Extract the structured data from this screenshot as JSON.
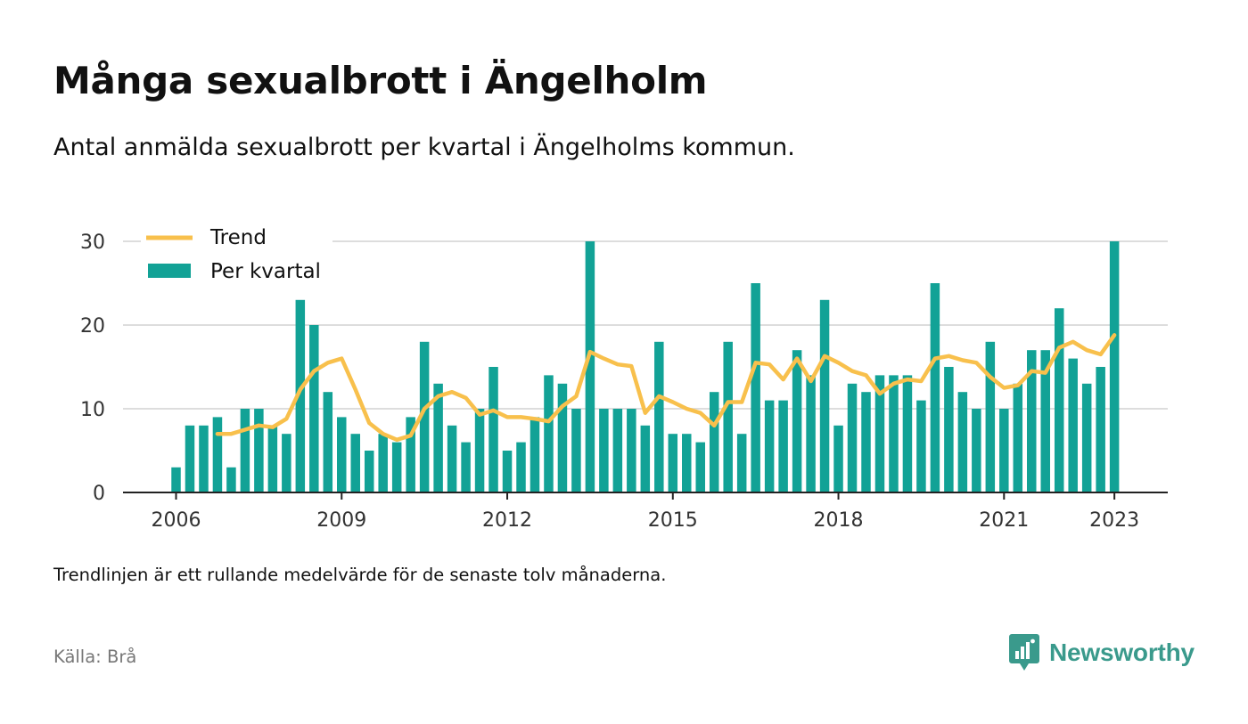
{
  "title": "Många sexualbrott i Ängelholm",
  "subtitle": "Antal anmälda sexualbrott per kvartal i Ängelholms kommun.",
  "note": "Trendlinjen är ett rullande medelvärde för de senaste tolv månaderna.",
  "source": "Källa: Brå",
  "brand": {
    "name": "Newsworthy",
    "icon": "newsworthy-logo-icon"
  },
  "colors": {
    "bars": "#12a296",
    "trend": "#f8c04c",
    "grid": "#dddddd",
    "axis": "#222222",
    "brand": "#3a9a8c"
  },
  "chart_data": {
    "type": "bar",
    "x_start": "2006 Q1",
    "xticks": [
      "2006",
      "2009",
      "2012",
      "2015",
      "2018",
      "2021",
      "2023"
    ],
    "yticks": [
      "0",
      "10",
      "20",
      "30"
    ],
    "ylim": [
      0,
      30
    ],
    "grid": true,
    "legend_position": "top-left",
    "series": [
      {
        "name": "Per kvartal",
        "kind": "bar",
        "values": [
          3,
          8,
          8,
          9,
          3,
          10,
          10,
          8,
          7,
          23,
          20,
          12,
          9,
          7,
          5,
          7,
          6,
          9,
          18,
          13,
          8,
          6,
          10,
          15,
          5,
          6,
          9,
          14,
          13,
          10,
          30,
          10,
          10,
          10,
          8,
          18,
          7,
          7,
          6,
          12,
          18,
          7,
          25,
          11,
          11,
          17,
          14,
          23,
          8,
          13,
          12,
          14,
          14,
          14,
          11,
          25,
          15,
          12,
          10,
          18,
          10,
          13,
          17,
          17,
          22,
          16,
          13,
          15,
          30
        ]
      },
      {
        "name": "Trend",
        "kind": "line",
        "values": [
          null,
          null,
          null,
          7,
          7,
          7.5,
          8,
          7.8,
          8.8,
          12.3,
          14.5,
          15.5,
          16,
          12.3,
          8.3,
          7,
          6.3,
          6.8,
          10,
          11.5,
          12,
          11.3,
          9.3,
          9.8,
          9,
          9,
          8.8,
          8.5,
          10.3,
          11.5,
          16.8,
          16,
          15.3,
          15.1,
          9.5,
          11.5,
          10.8,
          10,
          9.5,
          8,
          10.8,
          10.8,
          15.5,
          15.3,
          13.5,
          16,
          13.3,
          16.3,
          15.5,
          14.5,
          14,
          11.8,
          13,
          13.5,
          13.3,
          16,
          16.3,
          15.8,
          15.5,
          13.8,
          12.5,
          12.8,
          14.5,
          14.3,
          17.3,
          18,
          17,
          16.5,
          18.8
        ]
      }
    ]
  }
}
